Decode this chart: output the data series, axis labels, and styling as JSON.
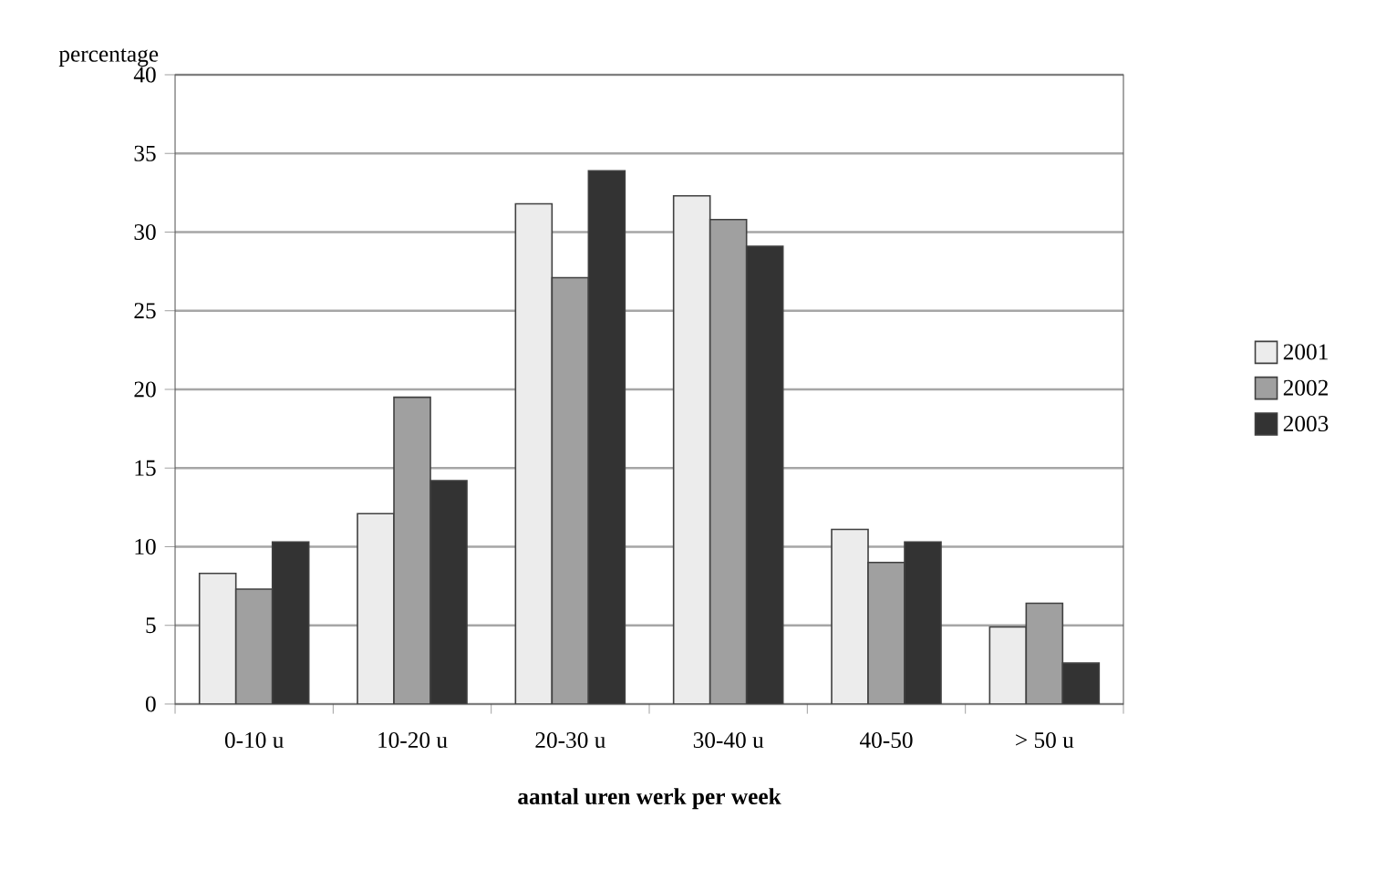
{
  "chart_data": {
    "type": "bar",
    "ylabel": "percentage",
    "xlabel": "aantal uren werk per week",
    "categories": [
      "0-10 u",
      "10-20 u",
      "20-30 u",
      "30-40 u",
      "40-50",
      "> 50 u"
    ],
    "series": [
      {
        "name": "2001",
        "color": "#ececec",
        "values": [
          8.3,
          12.1,
          31.8,
          32.3,
          11.1,
          4.9
        ]
      },
      {
        "name": "2002",
        "color": "#a0a0a0",
        "values": [
          7.3,
          19.5,
          27.1,
          30.8,
          9.0,
          6.4
        ]
      },
      {
        "name": "2003",
        "color": "#333333",
        "values": [
          10.3,
          14.2,
          33.9,
          29.1,
          10.3,
          2.6
        ]
      }
    ],
    "ylim": [
      0,
      40
    ],
    "yticks": [
      0,
      5,
      10,
      15,
      20,
      25,
      30,
      35,
      40
    ],
    "grid": "y",
    "legend": "right"
  }
}
